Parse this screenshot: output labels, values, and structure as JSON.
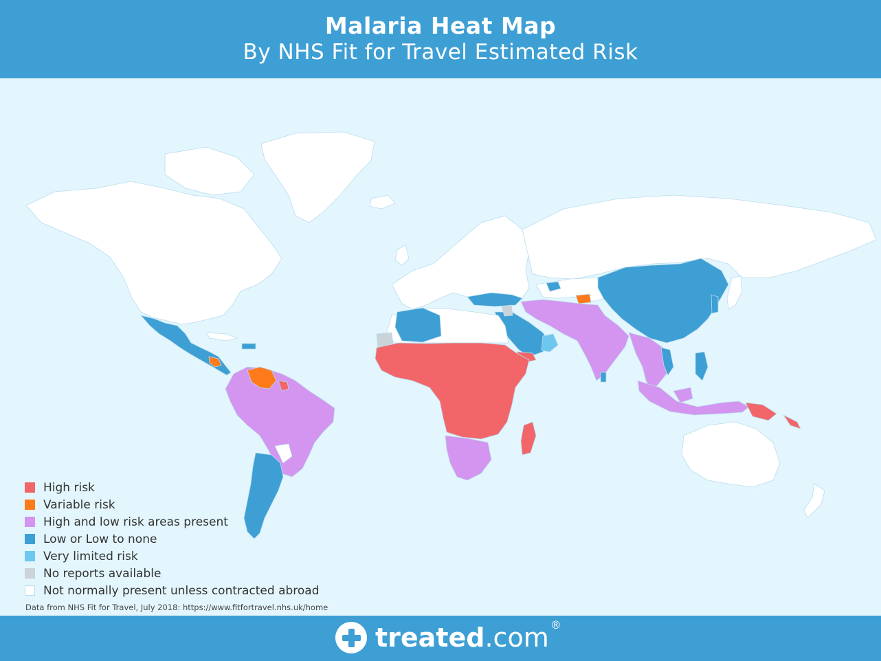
{
  "header": {
    "title_line1": "Malaria Heat Map",
    "title_line2": "By NHS Fit for Travel Estimated Risk"
  },
  "legend": [
    {
      "label": "High risk",
      "color": "#f2666a"
    },
    {
      "label": "Variable risk",
      "color": "#ff7a1a"
    },
    {
      "label": "High and low risk areas present",
      "color": "#d395ef"
    },
    {
      "label": "Low or Low to none",
      "color": "#3d9fd4"
    },
    {
      "label": "Very limited risk",
      "color": "#6dc7ee"
    },
    {
      "label": "No reports available",
      "color": "#c9d3d9"
    },
    {
      "label": "Not normally present unless contracted abroad",
      "color": "#ffffff"
    }
  ],
  "source": "Data from NHS Fit for Travel, July 2018: https://www.fitfortravel.nhs.uk/home",
  "logo": {
    "bold": "treated",
    "rest": ".com",
    "mark": "®"
  },
  "colors": {
    "header_bg": "#3d9fd4",
    "ocean": "#e3f6fd"
  }
}
